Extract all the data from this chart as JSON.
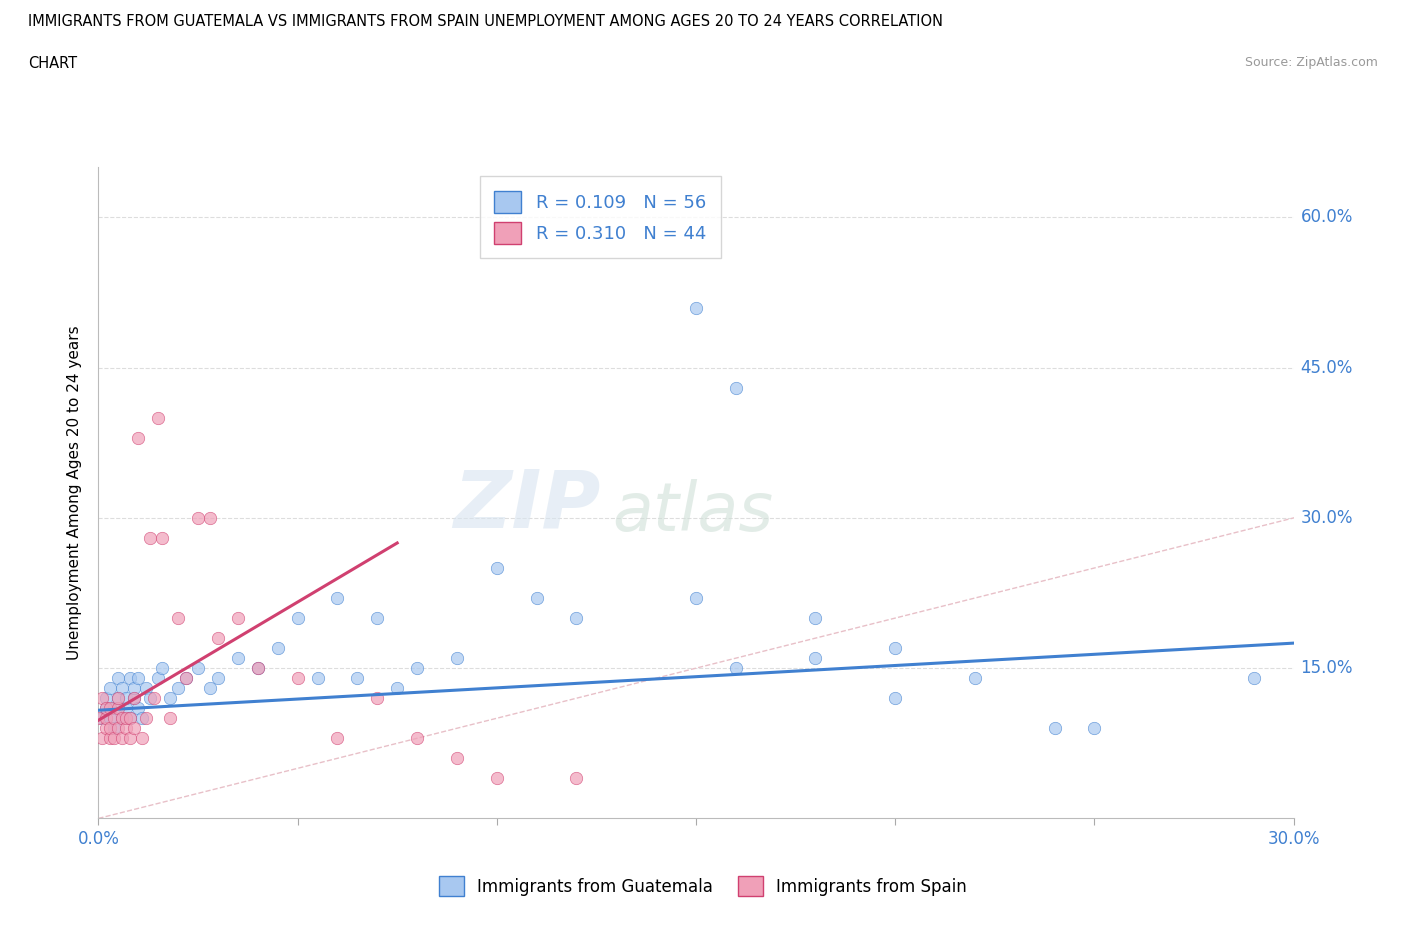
{
  "title_line1": "IMMIGRANTS FROM GUATEMALA VS IMMIGRANTS FROM SPAIN UNEMPLOYMENT AMONG AGES 20 TO 24 YEARS CORRELATION",
  "title_line2": "CHART",
  "source": "Source: ZipAtlas.com",
  "ylabel": "Unemployment Among Ages 20 to 24 years",
  "xlim": [
    0.0,
    0.3
  ],
  "ylim": [
    0.0,
    0.65
  ],
  "color_guatemala": "#A8C8F0",
  "color_spain": "#F0A0B8",
  "color_line_guatemala": "#4080D0",
  "color_line_spain": "#D04070",
  "color_diagonal": "#D0D0D0",
  "watermark_zip": "ZIP",
  "watermark_atlas": "atlas",
  "guatemala_x": [
    0.001,
    0.002,
    0.002,
    0.003,
    0.003,
    0.004,
    0.004,
    0.005,
    0.005,
    0.006,
    0.006,
    0.007,
    0.007,
    0.008,
    0.008,
    0.009,
    0.009,
    0.01,
    0.01,
    0.011,
    0.012,
    0.013,
    0.015,
    0.016,
    0.018,
    0.02,
    0.022,
    0.025,
    0.028,
    0.03,
    0.035,
    0.04,
    0.045,
    0.05,
    0.055,
    0.06,
    0.065,
    0.07,
    0.075,
    0.08,
    0.09,
    0.1,
    0.11,
    0.12,
    0.15,
    0.16,
    0.18,
    0.2,
    0.22,
    0.24,
    0.25,
    0.15,
    0.18,
    0.2,
    0.16,
    0.29
  ],
  "guatemala_y": [
    0.1,
    0.11,
    0.12,
    0.1,
    0.13,
    0.09,
    0.11,
    0.12,
    0.14,
    0.1,
    0.13,
    0.11,
    0.12,
    0.14,
    0.1,
    0.12,
    0.13,
    0.11,
    0.14,
    0.1,
    0.13,
    0.12,
    0.14,
    0.15,
    0.12,
    0.13,
    0.14,
    0.15,
    0.13,
    0.14,
    0.16,
    0.15,
    0.17,
    0.2,
    0.14,
    0.22,
    0.14,
    0.2,
    0.13,
    0.15,
    0.16,
    0.25,
    0.22,
    0.2,
    0.51,
    0.43,
    0.16,
    0.12,
    0.14,
    0.09,
    0.09,
    0.22,
    0.2,
    0.17,
    0.15,
    0.14
  ],
  "spain_x": [
    0.0,
    0.001,
    0.001,
    0.002,
    0.002,
    0.002,
    0.003,
    0.003,
    0.003,
    0.004,
    0.004,
    0.005,
    0.005,
    0.005,
    0.006,
    0.006,
    0.007,
    0.007,
    0.008,
    0.008,
    0.009,
    0.009,
    0.01,
    0.011,
    0.012,
    0.013,
    0.014,
    0.015,
    0.016,
    0.018,
    0.02,
    0.022,
    0.025,
    0.028,
    0.03,
    0.035,
    0.04,
    0.05,
    0.06,
    0.07,
    0.08,
    0.09,
    0.1,
    0.12
  ],
  "spain_y": [
    0.1,
    0.08,
    0.12,
    0.09,
    0.1,
    0.11,
    0.08,
    0.09,
    0.11,
    0.08,
    0.1,
    0.09,
    0.11,
    0.12,
    0.08,
    0.1,
    0.09,
    0.1,
    0.08,
    0.1,
    0.12,
    0.09,
    0.38,
    0.08,
    0.1,
    0.28,
    0.12,
    0.4,
    0.28,
    0.1,
    0.2,
    0.14,
    0.3,
    0.3,
    0.18,
    0.2,
    0.15,
    0.14,
    0.08,
    0.12,
    0.08,
    0.06,
    0.04,
    0.04
  ]
}
